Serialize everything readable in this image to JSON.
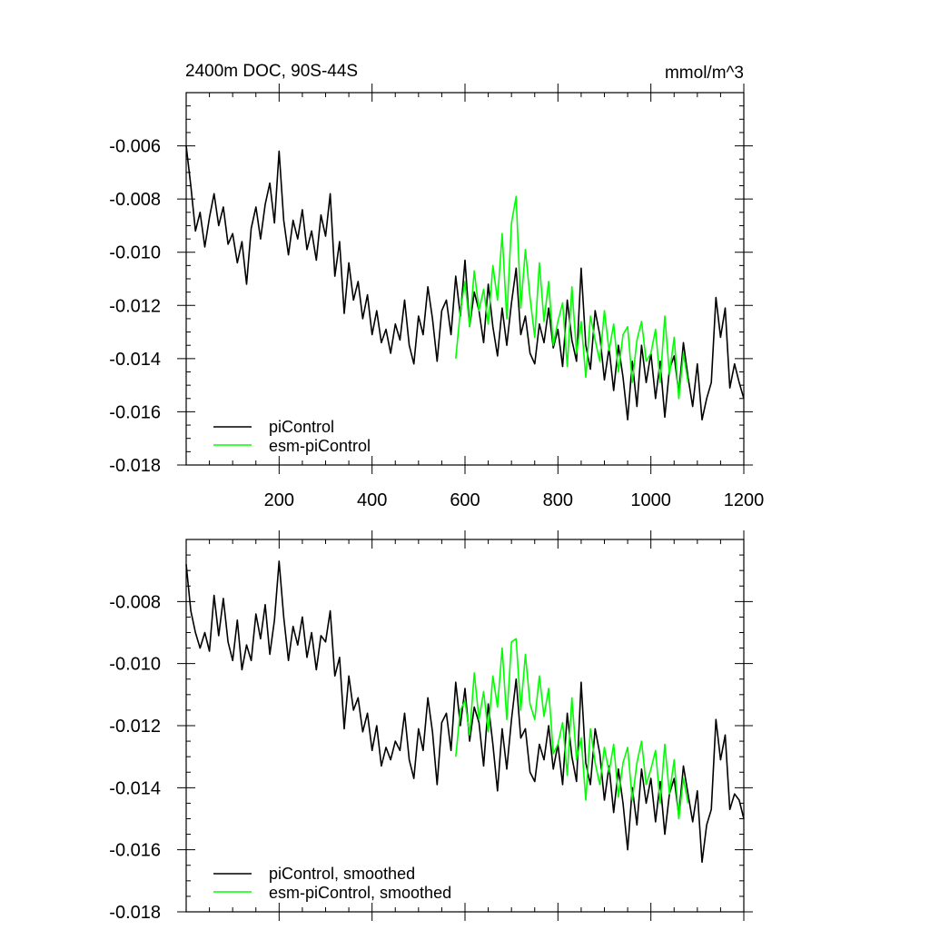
{
  "chart_data": [
    {
      "type": "line",
      "title_left": "2400m DOC, 90S-44S",
      "title_right": "mmol/m^3",
      "xlim": [
        0,
        1200
      ],
      "ylim": [
        -0.018,
        -0.004
      ],
      "xticks": [
        200,
        400,
        600,
        800,
        1000,
        1200
      ],
      "xtick_labels": [
        "200",
        "400",
        "600",
        "800",
        "1000",
        "1200"
      ],
      "yticks": [
        -0.018,
        -0.016,
        -0.014,
        -0.012,
        -0.01,
        -0.008,
        -0.006
      ],
      "ytick_labels": [
        "-0.018",
        "-0.016",
        "-0.014",
        "-0.012",
        "-0.010",
        "-0.008",
        "-0.006"
      ],
      "legend_position": "bottom-left",
      "series": [
        {
          "name": "piControl",
          "color": "#000000",
          "x": [
            0,
            10,
            20,
            30,
            40,
            50,
            60,
            70,
            80,
            90,
            100,
            110,
            120,
            130,
            140,
            150,
            160,
            170,
            180,
            190,
            200,
            210,
            220,
            230,
            240,
            250,
            260,
            270,
            280,
            290,
            300,
            310,
            320,
            330,
            340,
            350,
            360,
            370,
            380,
            390,
            400,
            410,
            420,
            430,
            440,
            450,
            460,
            470,
            480,
            490,
            500,
            510,
            520,
            530,
            540,
            550,
            560,
            570,
            580,
            590,
            600,
            610,
            620,
            630,
            640,
            650,
            660,
            670,
            680,
            690,
            700,
            710,
            720,
            730,
            740,
            750,
            760,
            770,
            780,
            790,
            800,
            810,
            820,
            830,
            840,
            850,
            860,
            870,
            880,
            890,
            900,
            910,
            920,
            930,
            940,
            950,
            960,
            970,
            980,
            990,
            1000,
            1010,
            1020,
            1030,
            1040,
            1050,
            1060,
            1070,
            1080,
            1090,
            1100,
            1110,
            1120,
            1130,
            1140,
            1150,
            1160,
            1170,
            1180,
            1190,
            1200
          ],
          "values": [
            -0.006,
            -0.0075,
            -0.0092,
            -0.0085,
            -0.0098,
            -0.0087,
            -0.0078,
            -0.009,
            -0.0083,
            -0.0097,
            -0.0093,
            -0.0104,
            -0.0096,
            -0.0112,
            -0.0091,
            -0.0083,
            -0.0095,
            -0.0082,
            -0.0074,
            -0.0089,
            -0.0062,
            -0.0088,
            -0.0101,
            -0.0088,
            -0.0095,
            -0.0084,
            -0.0099,
            -0.0092,
            -0.0103,
            -0.0086,
            -0.0094,
            -0.0078,
            -0.0109,
            -0.0096,
            -0.0123,
            -0.0104,
            -0.0118,
            -0.0111,
            -0.0125,
            -0.0116,
            -0.0131,
            -0.0122,
            -0.0134,
            -0.0129,
            -0.0138,
            -0.0127,
            -0.0133,
            -0.0118,
            -0.0135,
            -0.0142,
            -0.0124,
            -0.0131,
            -0.0113,
            -0.0125,
            -0.0141,
            -0.0122,
            -0.0118,
            -0.0131,
            -0.0109,
            -0.0124,
            -0.0103,
            -0.0128,
            -0.0115,
            -0.0122,
            -0.0134,
            -0.0112,
            -0.0128,
            -0.0139,
            -0.0121,
            -0.0135,
            -0.0119,
            -0.0106,
            -0.0131,
            -0.0124,
            -0.0138,
            -0.0142,
            -0.0127,
            -0.0134,
            -0.0121,
            -0.0136,
            -0.0129,
            -0.0143,
            -0.0118,
            -0.0133,
            -0.0141,
            -0.0106,
            -0.0135,
            -0.0144,
            -0.0122,
            -0.0131,
            -0.0148,
            -0.0136,
            -0.0152,
            -0.0135,
            -0.0147,
            -0.0163,
            -0.0141,
            -0.0158,
            -0.0135,
            -0.0149,
            -0.0138,
            -0.0155,
            -0.0141,
            -0.0162,
            -0.0144,
            -0.0139,
            -0.0153,
            -0.0134,
            -0.0147,
            -0.0158,
            -0.0142,
            -0.0163,
            -0.0155,
            -0.0149,
            -0.0117,
            -0.0132,
            -0.0121,
            -0.0151,
            -0.0142,
            -0.0149,
            -0.0155
          ]
        },
        {
          "name": "esm-piControl",
          "color": "#00ff00",
          "x": [
            580,
            590,
            600,
            610,
            620,
            630,
            640,
            650,
            660,
            670,
            680,
            690,
            700,
            710,
            720,
            730,
            740,
            750,
            760,
            770,
            780,
            790,
            800,
            810,
            820,
            830,
            840,
            850,
            860,
            870,
            880,
            890,
            900,
            910,
            920,
            930,
            940,
            950,
            960,
            970,
            980,
            990,
            1000,
            1010,
            1020,
            1030,
            1040,
            1050,
            1060,
            1070,
            1080
          ],
          "values": [
            -0.014,
            -0.0122,
            -0.0111,
            -0.0128,
            -0.0107,
            -0.0122,
            -0.0114,
            -0.0127,
            -0.0105,
            -0.0118,
            -0.0093,
            -0.0125,
            -0.0089,
            -0.0079,
            -0.0121,
            -0.0099,
            -0.0117,
            -0.0132,
            -0.0104,
            -0.0126,
            -0.0111,
            -0.0135,
            -0.0126,
            -0.0119,
            -0.0143,
            -0.0113,
            -0.0138,
            -0.0126,
            -0.0147,
            -0.0124,
            -0.0133,
            -0.0141,
            -0.0122,
            -0.0137,
            -0.0127,
            -0.0145,
            -0.0131,
            -0.0128,
            -0.0149,
            -0.0133,
            -0.0126,
            -0.0141,
            -0.0138,
            -0.0129,
            -0.0149,
            -0.0124,
            -0.0146,
            -0.0132,
            -0.0155,
            -0.0138,
            -0.0149
          ]
        }
      ]
    },
    {
      "type": "line",
      "xlim": [
        0,
        1200
      ],
      "ylim": [
        -0.018,
        -0.006
      ],
      "xticks": [
        200,
        400,
        600,
        800,
        1000,
        1200
      ],
      "yticks": [
        -0.018,
        -0.016,
        -0.014,
        -0.012,
        -0.01,
        -0.008
      ],
      "ytick_labels": [
        "-0.018",
        "-0.016",
        "-0.014",
        "-0.012",
        "-0.010",
        "-0.008"
      ],
      "legend_position": "bottom-left",
      "series": [
        {
          "name": "piControl, smoothed",
          "color": "#000000",
          "x": [
            0,
            10,
            20,
            30,
            40,
            50,
            60,
            70,
            80,
            90,
            100,
            110,
            120,
            130,
            140,
            150,
            160,
            170,
            180,
            190,
            200,
            210,
            220,
            230,
            240,
            250,
            260,
            270,
            280,
            290,
            300,
            310,
            320,
            330,
            340,
            350,
            360,
            370,
            380,
            390,
            400,
            410,
            420,
            430,
            440,
            450,
            460,
            470,
            480,
            490,
            500,
            510,
            520,
            530,
            540,
            550,
            560,
            570,
            580,
            590,
            600,
            610,
            620,
            630,
            640,
            650,
            660,
            670,
            680,
            690,
            700,
            710,
            720,
            730,
            740,
            750,
            760,
            770,
            780,
            790,
            800,
            810,
            820,
            830,
            840,
            850,
            860,
            870,
            880,
            890,
            900,
            910,
            920,
            930,
            940,
            950,
            960,
            970,
            980,
            990,
            1000,
            1010,
            1020,
            1030,
            1040,
            1050,
            1060,
            1070,
            1080,
            1090,
            1100,
            1110,
            1120,
            1130,
            1140,
            1150,
            1160,
            1170,
            1180,
            1190,
            1200
          ],
          "values": [
            -0.0068,
            -0.0083,
            -0.009,
            -0.0095,
            -0.009,
            -0.0096,
            -0.0078,
            -0.0091,
            -0.0079,
            -0.0093,
            -0.0099,
            -0.0086,
            -0.0102,
            -0.0094,
            -0.0099,
            -0.0084,
            -0.0092,
            -0.0081,
            -0.0097,
            -0.0086,
            -0.0067,
            -0.0085,
            -0.0099,
            -0.0088,
            -0.0094,
            -0.0085,
            -0.0098,
            -0.009,
            -0.0102,
            -0.0091,
            -0.0093,
            -0.0083,
            -0.0104,
            -0.0098,
            -0.0121,
            -0.0104,
            -0.0115,
            -0.0111,
            -0.0122,
            -0.0116,
            -0.0128,
            -0.012,
            -0.0133,
            -0.0127,
            -0.0131,
            -0.0125,
            -0.0128,
            -0.0116,
            -0.0131,
            -0.0137,
            -0.0121,
            -0.0128,
            -0.0111,
            -0.0122,
            -0.0139,
            -0.0119,
            -0.0116,
            -0.0128,
            -0.0106,
            -0.012,
            -0.0108,
            -0.0125,
            -0.0114,
            -0.0119,
            -0.0133,
            -0.0113,
            -0.0126,
            -0.0141,
            -0.0121,
            -0.0134,
            -0.0118,
            -0.0105,
            -0.0124,
            -0.0121,
            -0.0135,
            -0.0138,
            -0.0126,
            -0.0131,
            -0.012,
            -0.0134,
            -0.0126,
            -0.0139,
            -0.0116,
            -0.013,
            -0.0138,
            -0.0106,
            -0.0132,
            -0.0139,
            -0.0121,
            -0.0129,
            -0.0144,
            -0.0133,
            -0.0148,
            -0.0134,
            -0.0145,
            -0.016,
            -0.014,
            -0.0152,
            -0.0134,
            -0.0145,
            -0.0137,
            -0.0151,
            -0.0138,
            -0.0155,
            -0.0142,
            -0.0137,
            -0.0149,
            -0.0133,
            -0.0142,
            -0.0151,
            -0.0141,
            -0.0164,
            -0.0152,
            -0.0147,
            -0.0118,
            -0.0131,
            -0.0123,
            -0.0147,
            -0.0142,
            -0.0144,
            -0.015
          ]
        },
        {
          "name": "esm-piControl, smoothed",
          "color": "#00ff00",
          "x": [
            580,
            590,
            600,
            610,
            620,
            630,
            640,
            650,
            660,
            670,
            680,
            690,
            700,
            710,
            720,
            730,
            740,
            750,
            760,
            770,
            780,
            790,
            800,
            810,
            820,
            830,
            840,
            850,
            860,
            870,
            880,
            890,
            900,
            910,
            920,
            930,
            940,
            950,
            960,
            970,
            980,
            990,
            1000,
            1010,
            1020,
            1030,
            1040,
            1050,
            1060,
            1070,
            1080
          ],
          "values": [
            -0.013,
            -0.0115,
            -0.0112,
            -0.0123,
            -0.0103,
            -0.0118,
            -0.0109,
            -0.0122,
            -0.0104,
            -0.0114,
            -0.0095,
            -0.0118,
            -0.0093,
            -0.0092,
            -0.0115,
            -0.0097,
            -0.0113,
            -0.0118,
            -0.0104,
            -0.0117,
            -0.0108,
            -0.0129,
            -0.0126,
            -0.0119,
            -0.0136,
            -0.0111,
            -0.0131,
            -0.0124,
            -0.0144,
            -0.0121,
            -0.0132,
            -0.0139,
            -0.0127,
            -0.0135,
            -0.0126,
            -0.0143,
            -0.0132,
            -0.0127,
            -0.0144,
            -0.0132,
            -0.0125,
            -0.0139,
            -0.0134,
            -0.0128,
            -0.0145,
            -0.0126,
            -0.0142,
            -0.0131,
            -0.015,
            -0.0137,
            -0.0145
          ]
        }
      ]
    }
  ]
}
